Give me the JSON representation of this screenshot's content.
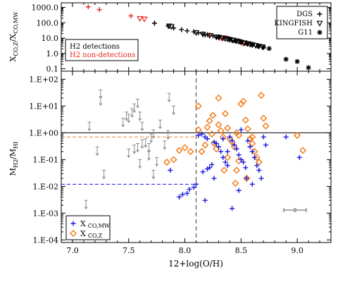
{
  "chart_data": [
    {
      "type": "scatter",
      "id": "top",
      "ylabel": "X_CO,Z / X_CO,MW",
      "ylabel_main": "X",
      "ylabel_sub": "CO,Z",
      "ylabel_sep": "/X",
      "ylabel_sub2": "CO,MW",
      "xlim": [
        6.9,
        9.3
      ],
      "ylim_log": [
        0.07,
        2000
      ],
      "y_scale": "log",
      "y_ticks": [
        {
          "value": 0.1,
          "label": "0.1"
        },
        {
          "value": 1,
          "label": "1.0"
        },
        {
          "value": 10,
          "label": "10.0"
        },
        {
          "value": 100,
          "label": "100.0"
        },
        {
          "value": 1000,
          "label": "1000.0"
        }
      ],
      "legend_left": {
        "position": "bottom-left",
        "entries": [
          {
            "text": "H2 detections",
            "color": "#000000"
          },
          {
            "text": "H2 non-detections",
            "color": "#e8251c"
          }
        ]
      },
      "legend_right": {
        "position": "top-right",
        "entries": [
          {
            "text": "DGS",
            "marker": "plus"
          },
          {
            "text": "KINGFISH",
            "marker": "triangle"
          },
          {
            "text": "G11",
            "marker": "asterisk"
          }
        ]
      },
      "series": [
        {
          "marker": "plus",
          "color": "#e8251c",
          "points": [
            [
              7.14,
              1100
            ],
            [
              7.24,
              720
            ],
            [
              7.52,
              280
            ],
            [
              7.73,
              92
            ],
            [
              8.22,
              16
            ],
            [
              8.31,
              10
            ]
          ]
        },
        {
          "marker": "triangle",
          "color": "#e8251c",
          "points": [
            [
              7.6,
              190
            ],
            [
              7.64,
              175
            ],
            [
              8.34,
              10.5
            ],
            [
              8.36,
              9.8
            ],
            [
              8.52,
              4.5
            ]
          ]
        },
        {
          "marker": "plus",
          "color": "#000000",
          "points": [
            [
              7.73,
              95
            ],
            [
              7.85,
              60
            ],
            [
              7.9,
              45
            ],
            [
              7.97,
              36
            ],
            [
              8.02,
              30
            ],
            [
              8.08,
              26
            ],
            [
              8.12,
              22
            ],
            [
              8.16,
              19
            ],
            [
              8.2,
              17
            ],
            [
              8.25,
              14
            ],
            [
              8.3,
              12
            ],
            [
              8.35,
              10
            ],
            [
              8.4,
              8
            ],
            [
              8.45,
              6.5
            ],
            [
              8.5,
              5.5
            ],
            [
              8.55,
              4.3
            ],
            [
              8.6,
              3.5
            ],
            [
              8.65,
              3.0
            ],
            [
              8.7,
              2.5
            ],
            [
              8.18,
              16
            ],
            [
              8.28,
              11
            ],
            [
              8.42,
              7
            ]
          ]
        },
        {
          "marker": "triangle",
          "color": "#000000",
          "points": [
            [
              7.86,
              62
            ],
            [
              7.88,
              57
            ],
            [
              8.1,
              23
            ],
            [
              8.16,
              18
            ],
            [
              8.22,
              15
            ],
            [
              8.28,
              12
            ],
            [
              8.3,
              11.5
            ],
            [
              8.33,
              10.2
            ],
            [
              8.36,
              9.3
            ],
            [
              8.38,
              8.8
            ],
            [
              8.4,
              8.2
            ],
            [
              8.43,
              7.4
            ],
            [
              8.46,
              6.6
            ],
            [
              8.48,
              6.0
            ],
            [
              8.5,
              5.4
            ],
            [
              8.53,
              4.9
            ],
            [
              8.56,
              4.4
            ],
            [
              8.58,
              4.0
            ],
            [
              8.6,
              3.7
            ],
            [
              8.63,
              3.3
            ],
            [
              8.66,
              3.0
            ],
            [
              8.69,
              2.7
            ]
          ]
        },
        {
          "marker": "asterisk",
          "color": "#000000",
          "points": [
            [
              8.4,
              8.0
            ],
            [
              8.45,
              6.7
            ],
            [
              8.5,
              5.6
            ],
            [
              8.55,
              4.6
            ],
            [
              8.6,
              3.8
            ],
            [
              8.65,
              3.1
            ],
            [
              8.7,
              2.6
            ],
            [
              8.75,
              2.1
            ],
            [
              8.9,
              0.42
            ],
            [
              9.0,
              0.3
            ],
            [
              9.1,
              0.12
            ]
          ]
        }
      ]
    },
    {
      "type": "scatter",
      "id": "bottom",
      "xlabel": "12+log(O/H)",
      "ylabel": "M_H2 / M_HI",
      "ylabel_main": "M",
      "ylabel_sub": "H2",
      "ylabel_sep": "/M",
      "ylabel_sub2": "HI",
      "xlim": [
        6.9,
        9.3
      ],
      "ylim_log": [
        8e-05,
        200
      ],
      "y_scale": "log",
      "x_ticks": [
        {
          "value": 7.0,
          "label": "7.0"
        },
        {
          "value": 7.5,
          "label": "7.5"
        },
        {
          "value": 8.0,
          "label": "8.0"
        },
        {
          "value": 8.5,
          "label": "8.5"
        },
        {
          "value": 9.0,
          "label": "9.0"
        }
      ],
      "y_ticks": [
        {
          "value": 0.0001,
          "label": "1.E-04"
        },
        {
          "value": 0.001,
          "label": "1.E-03"
        },
        {
          "value": 0.01,
          "label": "1.E-02"
        },
        {
          "value": 0.1,
          "label": "1.E-01"
        },
        {
          "value": 1,
          "label": "1.E+00"
        },
        {
          "value": 10,
          "label": "1.E+01"
        },
        {
          "value": 100,
          "label": "1.E+02"
        }
      ],
      "legend": {
        "position": "bottom-left",
        "entries": [
          {
            "label_main": "X",
            "label_sub": "CO,MW",
            "marker": "plus",
            "color": "#1a1adf"
          },
          {
            "label_main": "X",
            "label_sub": "CO,Z",
            "marker": "diamond",
            "color": "#f08020"
          }
        ]
      },
      "reference_lines": {
        "vertical_dashed_x": 8.1,
        "solid_y": 1.0,
        "orange_dashed_y": 0.7,
        "orange_dashed_x_end": 8.1,
        "blue_dashed_y": 0.012,
        "blue_dashed_x_end": 8.1
      },
      "error_bar": {
        "x": 8.98,
        "y": 0.0013,
        "x_halfwidth": 0.1
      },
      "series": [
        {
          "name": "X_CO,MW",
          "marker": "plus",
          "color": "#1a1adf",
          "points": [
            [
              8.1,
              0.012
            ],
            [
              7.87,
              0.04
            ],
            [
              7.95,
              0.004
            ],
            [
              7.98,
              0.005
            ],
            [
              8.02,
              0.0055
            ],
            [
              8.04,
              0.0078
            ],
            [
              8.08,
              0.0092
            ],
            [
              8.12,
              0.8
            ],
            [
              8.15,
              0.9
            ],
            [
              8.18,
              0.7
            ],
            [
              8.2,
              0.6
            ],
            [
              8.16,
              0.035
            ],
            [
              8.2,
              0.045
            ],
            [
              8.22,
              0.05
            ],
            [
              8.24,
              0.065
            ],
            [
              8.18,
              0.003
            ],
            [
              8.26,
              0.02
            ],
            [
              8.28,
              0.4
            ],
            [
              8.3,
              0.3
            ],
            [
              8.32,
              0.2
            ],
            [
              8.34,
              0.12
            ],
            [
              8.36,
              0.08
            ],
            [
              8.38,
              0.06
            ],
            [
              8.4,
              0.7
            ],
            [
              8.42,
              0.5
            ],
            [
              8.44,
              0.35
            ],
            [
              8.46,
              0.25
            ],
            [
              8.48,
              0.15
            ],
            [
              8.5,
              0.1
            ],
            [
              8.52,
              0.08
            ],
            [
              8.54,
              0.05
            ],
            [
              8.56,
              0.5
            ],
            [
              8.58,
              0.3
            ],
            [
              8.6,
              0.2
            ],
            [
              8.62,
              0.12
            ],
            [
              8.64,
              0.06
            ],
            [
              8.66,
              0.04
            ],
            [
              8.68,
              0.02
            ],
            [
              8.7,
              0.7
            ],
            [
              8.72,
              0.35
            ],
            [
              8.42,
              0.0015
            ],
            [
              8.48,
              0.007
            ],
            [
              8.55,
              0.02
            ],
            [
              8.6,
              0.012
            ],
            [
              8.9,
              0.7
            ],
            [
              9.02,
              0.12
            ],
            [
              8.38,
              0.2
            ],
            [
              8.34,
              0.6
            ],
            [
              8.26,
              0.45
            ],
            [
              8.5,
              1.3
            ]
          ]
        },
        {
          "name": "X_CO,Z",
          "marker": "diamond",
          "color": "#f08020",
          "points": [
            [
              8.12,
              10
            ],
            [
              8.12,
              1.3
            ],
            [
              8.15,
              0.2
            ],
            [
              8.18,
              0.35
            ],
            [
              8.2,
              1.6
            ],
            [
              8.22,
              2.8
            ],
            [
              8.24,
              0.9
            ],
            [
              8.26,
              0.4
            ],
            [
              8.28,
              0.25
            ],
            [
              8.3,
              2.0
            ],
            [
              8.32,
              1.2
            ],
            [
              8.34,
              0.7
            ],
            [
              8.36,
              5.2
            ],
            [
              8.38,
              1.5
            ],
            [
              8.4,
              0.6
            ],
            [
              8.42,
              0.45
            ],
            [
              8.44,
              0.3
            ],
            [
              8.46,
              1.0
            ],
            [
              8.48,
              0.8
            ],
            [
              8.5,
              12
            ],
            [
              8.52,
              15
            ],
            [
              8.54,
              3
            ],
            [
              8.56,
              1.4
            ],
            [
              8.58,
              0.6
            ],
            [
              8.6,
              0.4
            ],
            [
              8.62,
              0.2
            ],
            [
              8.64,
              0.12
            ],
            [
              8.66,
              0.08
            ],
            [
              8.68,
              25
            ],
            [
              8.7,
              3.5
            ],
            [
              8.72,
              1.8
            ],
            [
              8.55,
              0.02
            ],
            [
              8.45,
              0.013
            ],
            [
              8.35,
              0.04
            ],
            [
              8.05,
              0.2
            ],
            [
              8.0,
              0.28
            ],
            [
              7.95,
              0.22
            ],
            [
              7.9,
              0.1
            ],
            [
              7.84,
              0.08
            ],
            [
              8.3,
              20
            ],
            [
              8.48,
              0.09
            ],
            [
              9.0,
              0.8
            ],
            [
              9.05,
              0.22
            ],
            [
              8.46,
              0.04
            ],
            [
              8.25,
              4.5
            ],
            [
              8.6,
              0.7
            ],
            [
              8.38,
              0.12
            ]
          ]
        },
        {
          "name": "upper-limits",
          "marker": "uplimit",
          "color": "#8a8a8a",
          "points": [
            [
              7.25,
              40
            ],
            [
              7.25,
              22
            ],
            [
              7.15,
              2.5
            ],
            [
              7.22,
              0.3
            ],
            [
              7.28,
              0.04
            ],
            [
              7.12,
              0.003
            ],
            [
              7.45,
              3.5
            ],
            [
              7.48,
              6
            ],
            [
              7.5,
              5
            ],
            [
              7.53,
              8
            ],
            [
              7.55,
              12
            ],
            [
              7.58,
              18
            ],
            [
              7.6,
              6
            ],
            [
              7.62,
              2.5
            ],
            [
              7.65,
              0.6
            ],
            [
              7.5,
              0.25
            ],
            [
              7.55,
              0.35
            ],
            [
              7.62,
              0.55
            ],
            [
              7.7,
              0.9
            ],
            [
              7.72,
              1.3
            ],
            [
              7.75,
              0.12
            ],
            [
              7.68,
              0.4
            ],
            [
              7.72,
              0.04
            ],
            [
              7.6,
              0.1
            ],
            [
              7.86,
              30
            ],
            [
              7.9,
              10
            ],
            [
              7.82,
              0.5
            ],
            [
              7.85,
              1.2
            ],
            [
              7.58,
              0.4
            ],
            [
              7.68,
              0.2
            ],
            [
              7.78,
              3
            ]
          ]
        }
      ]
    }
  ]
}
